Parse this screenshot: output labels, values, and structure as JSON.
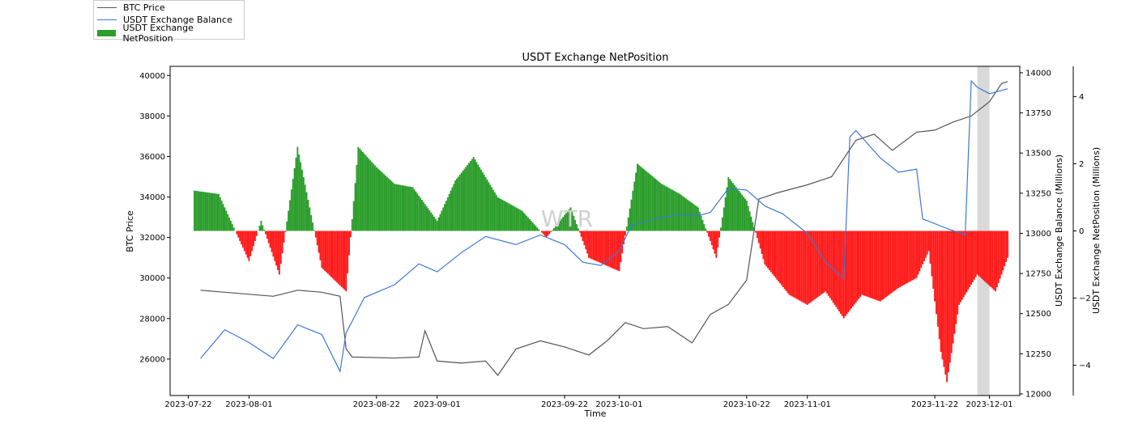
{
  "chart_data": {
    "type": "line+bar",
    "title": "USDT Exchange NetPosition",
    "xlabel": "Time",
    "ylabel_left": "BTC Price",
    "ylabel_right1": "USDT Exchange Balance (Millions)",
    "ylabel_right2": "USDT Exchange NetPosition (Millions)",
    "watermark": "WTR",
    "x_range": [
      "2023-07-19",
      "2023-12-06"
    ],
    "x_ticks": [
      "2023-07-22",
      "2023-08-01",
      "2023-08-22",
      "2023-09-01",
      "2023-09-22",
      "2023-10-01",
      "2023-10-22",
      "2023-11-01",
      "2023-11-22",
      "2023-12-01"
    ],
    "y_left": {
      "min": 24200,
      "max": 40450,
      "ticks": [
        26000,
        28000,
        30000,
        32000,
        34000,
        36000,
        38000,
        40000
      ]
    },
    "y_right1": {
      "min": 11990,
      "max": 14040,
      "ticks": [
        12000,
        12250,
        12500,
        12750,
        13000,
        13250,
        13500,
        13750,
        14000
      ]
    },
    "y_right2": {
      "min": -4.9,
      "max": 4.9,
      "ticks": [
        -4,
        -2,
        0,
        2,
        4
      ]
    },
    "shaded_region": [
      "2023-11-29",
      "2023-12-01"
    ],
    "colors": {
      "price": "#555555",
      "balance": "#3c78d8",
      "positive": "#2a9d2a",
      "negative": "#ff1a1a",
      "shade": "#d9d9d9"
    },
    "legend": {
      "location": "upper-left",
      "entries": [
        "BTC Price",
        "USDT Exchange Balance",
        "USDT Exchange NetPosition"
      ]
    },
    "series": [
      {
        "name": "BTC Price",
        "axis": "left",
        "x": [
          "2023-07-24",
          "2023-07-28",
          "2023-08-01",
          "2023-08-05",
          "2023-08-09",
          "2023-08-13",
          "2023-08-16",
          "2023-08-17",
          "2023-08-18",
          "2023-08-25",
          "2023-08-29",
          "2023-08-30",
          "2023-09-01",
          "2023-09-05",
          "2023-09-09",
          "2023-09-11",
          "2023-09-14",
          "2023-09-18",
          "2023-09-22",
          "2023-09-26",
          "2023-09-29",
          "2023-10-02",
          "2023-10-05",
          "2023-10-09",
          "2023-10-13",
          "2023-10-16",
          "2023-10-19",
          "2023-10-22",
          "2023-10-24",
          "2023-10-27",
          "2023-11-01",
          "2023-11-05",
          "2023-11-09",
          "2023-11-12",
          "2023-11-15",
          "2023-11-19",
          "2023-11-22",
          "2023-11-25",
          "2023-11-28",
          "2023-12-01",
          "2023-12-03",
          "2023-12-04"
        ],
        "values": [
          29400,
          29300,
          29200,
          29100,
          29400,
          29300,
          29100,
          26500,
          26100,
          26050,
          26100,
          27400,
          25900,
          25800,
          25900,
          25200,
          26500,
          26900,
          26600,
          26200,
          26900,
          27800,
          27500,
          27600,
          26800,
          28200,
          28700,
          29900,
          33900,
          34200,
          34600,
          35000,
          36800,
          37100,
          36300,
          37200,
          37300,
          37700,
          38000,
          38700,
          39600,
          39700
        ]
      },
      {
        "name": "USDT Exchange Balance",
        "axis": "right1",
        "x": [
          "2023-07-24",
          "2023-07-28",
          "2023-08-01",
          "2023-08-05",
          "2023-08-09",
          "2023-08-13",
          "2023-08-16",
          "2023-08-17",
          "2023-08-20",
          "2023-08-25",
          "2023-08-29",
          "2023-09-01",
          "2023-09-05",
          "2023-09-09",
          "2023-09-14",
          "2023-09-18",
          "2023-09-22",
          "2023-09-25",
          "2023-09-28",
          "2023-10-01",
          "2023-10-03",
          "2023-10-07",
          "2023-10-11",
          "2023-10-14",
          "2023-10-16",
          "2023-10-19",
          "2023-10-22",
          "2023-10-25",
          "2023-10-28",
          "2023-11-01",
          "2023-11-04",
          "2023-11-07",
          "2023-11-08",
          "2023-11-09",
          "2023-11-13",
          "2023-11-16",
          "2023-11-19",
          "2023-11-20",
          "2023-11-24",
          "2023-11-27",
          "2023-11-28",
          "2023-11-29",
          "2023-12-01",
          "2023-12-04"
        ],
        "values": [
          12220,
          12400,
          12320,
          12220,
          12430,
          12370,
          12140,
          12380,
          12600,
          12680,
          12810,
          12760,
          12880,
          12980,
          12930,
          12990,
          12930,
          12820,
          12800,
          12890,
          13050,
          13090,
          13120,
          13110,
          13130,
          13280,
          13270,
          13170,
          13120,
          13000,
          12820,
          12720,
          13600,
          13640,
          13470,
          13380,
          13400,
          13090,
          13030,
          12990,
          13950,
          13910,
          13870,
          13900
        ]
      },
      {
        "name": "USDT Exchange NetPosition",
        "axis": "right2",
        "type": "bar",
        "x": [
          "2023-07-23",
          "2023-07-27",
          "2023-08-01",
          "2023-08-03",
          "2023-08-06",
          "2023-08-09",
          "2023-08-13",
          "2023-08-17",
          "2023-08-19",
          "2023-08-22",
          "2023-08-25",
          "2023-08-28",
          "2023-09-01",
          "2023-09-04",
          "2023-09-07",
          "2023-09-11",
          "2023-09-15",
          "2023-09-19",
          "2023-09-23",
          "2023-09-26",
          "2023-10-01",
          "2023-10-04",
          "2023-10-08",
          "2023-10-11",
          "2023-10-14",
          "2023-10-17",
          "2023-10-19",
          "2023-10-22",
          "2023-10-25",
          "2023-10-29",
          "2023-11-01",
          "2023-11-04",
          "2023-11-07",
          "2023-11-10",
          "2023-11-13",
          "2023-11-16",
          "2023-11-19",
          "2023-11-21",
          "2023-11-23",
          "2023-11-24",
          "2023-11-26",
          "2023-11-29",
          "2023-12-02",
          "2023-12-04"
        ],
        "values": [
          1.2,
          1.1,
          -0.9,
          0.3,
          -1.3,
          2.5,
          -1.1,
          -1.8,
          2.5,
          1.9,
          1.4,
          1.3,
          0.3,
          1.5,
          2.2,
          1.0,
          0.6,
          -0.2,
          0.7,
          -0.8,
          -1.2,
          2.0,
          1.4,
          1.1,
          0.7,
          -0.8,
          1.6,
          0.9,
          -1.0,
          -1.9,
          -2.2,
          -1.8,
          -2.6,
          -1.9,
          -2.1,
          -1.7,
          -1.4,
          -0.6,
          -3.6,
          -4.5,
          -2.2,
          -1.3,
          -1.8,
          -0.8
        ]
      }
    ]
  }
}
